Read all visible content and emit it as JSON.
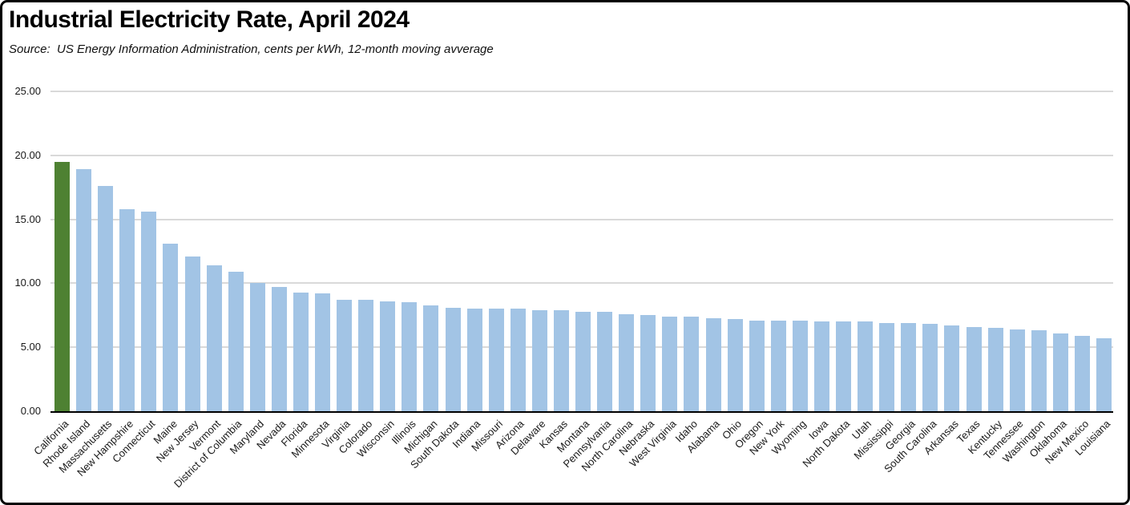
{
  "title": "Industrial Electricity Rate, April 2024",
  "subtitle": "Source:  US Energy Information Administration, cents per kWh, 12-month moving avverage",
  "colors": {
    "bar_default": "#A2C4E5",
    "bar_highlight": "#4E8132",
    "gridline": "#D9D9D9",
    "axis": "#000000"
  },
  "y_axis": {
    "tick_labels": [
      "0.00",
      "5.00",
      "10.00",
      "15.00",
      "20.00",
      "25.00"
    ]
  },
  "chart_data": {
    "type": "bar",
    "title": "Industrial Electricity Rate, April 2024",
    "subtitle": "Source:  US Energy Information Administration, cents per kWh, 12-month moving avverage",
    "xlabel": "",
    "ylabel": "",
    "ylim": [
      0,
      25
    ],
    "grid": true,
    "legend": false,
    "highlighted_category": "California",
    "categories": [
      "California",
      "Rhode Island",
      "Massachusetts",
      "New Hampshire",
      "Connecticut",
      "Maine",
      "New Jersey",
      "Vermont",
      "District of Columbia",
      "Maryland",
      "Nevada",
      "Florida",
      "Minnesota",
      "Virginia",
      "Colorado",
      "Wisconsin",
      "Illinois",
      "Michigan",
      "South Dakota",
      "Indiana",
      "Missouri",
      "Arizona",
      "Delaware",
      "Kansas",
      "Montana",
      "Pennsylvania",
      "North Carolina",
      "Nebraska",
      "West Virginia",
      "Idaho",
      "Alabama",
      "Ohio",
      "Oregon",
      "New York",
      "Wyoming",
      "Iowa",
      "North Dakota",
      "Utah",
      "Mississippi",
      "Georgia",
      "South Carolina",
      "Arkansas",
      "Texas",
      "Kentucky",
      "Tennessee",
      "Washington",
      "Oklahoma",
      "New Mexico",
      "Louisiana"
    ],
    "values": [
      19.5,
      18.9,
      17.6,
      15.8,
      15.6,
      13.1,
      12.1,
      11.4,
      10.9,
      10.0,
      9.7,
      9.3,
      9.2,
      8.7,
      8.7,
      8.6,
      8.5,
      8.3,
      8.1,
      8.0,
      8.0,
      8.0,
      7.9,
      7.9,
      7.8,
      7.8,
      7.6,
      7.5,
      7.4,
      7.4,
      7.3,
      7.2,
      7.1,
      7.1,
      7.1,
      7.0,
      7.0,
      7.0,
      6.9,
      6.9,
      6.8,
      6.7,
      6.6,
      6.5,
      6.4,
      6.3,
      6.1,
      5.9,
      5.7
    ]
  }
}
